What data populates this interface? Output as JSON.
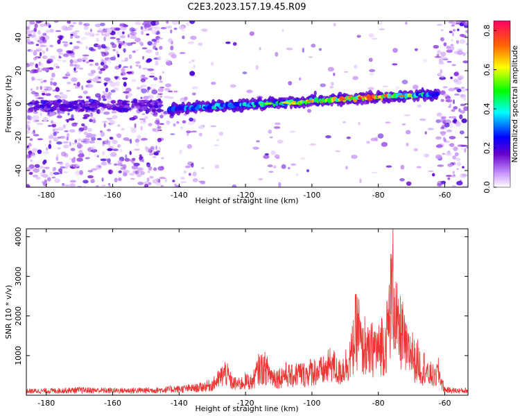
{
  "title": "C2E3.2023.157.19.45.R09",
  "chart_data": [
    {
      "type": "heatmap",
      "xlabel": "Height of straight line (km)",
      "ylabel": "Frequency (Hz)",
      "xlim": [
        -186,
        -53
      ],
      "ylim": [
        -50,
        50
      ],
      "x_ticks": [
        "-180",
        "-160",
        "-140",
        "-120",
        "-100",
        "-80",
        "-60"
      ],
      "y_ticks": [
        "-40",
        "-20",
        "0",
        "20",
        "40"
      ],
      "colorbar": {
        "label": "Normalized spectral amplitude",
        "range": [
          0,
          0.85
        ],
        "ticks": [
          "0.0",
          "0.2",
          "0.4",
          "0.6",
          "0.8"
        ],
        "colors": [
          "#ffffff",
          "#cc99ff",
          "#6600cc",
          "#0000ff",
          "#00ffff",
          "#00ff00",
          "#ffff00",
          "#ff6600",
          "#ff0066"
        ]
      },
      "band": {
        "x_start": -143,
        "x_end": -62,
        "freq_at_start": -3,
        "freq_at_end": 6,
        "intensity": [
          {
            "x": -140,
            "v": 0.35
          },
          {
            "x": -130,
            "v": 0.45
          },
          {
            "x": -120,
            "v": 0.4
          },
          {
            "x": -110,
            "v": 0.55
          },
          {
            "x": -100,
            "v": 0.65
          },
          {
            "x": -90,
            "v": 0.7
          },
          {
            "x": -80,
            "v": 0.8
          },
          {
            "x": -70,
            "v": 0.6
          },
          {
            "x": -62,
            "v": 0.3
          }
        ]
      }
    },
    {
      "type": "line",
      "xlabel": "Height of straight line (km)",
      "ylabel": "SNR (10 * v/v)",
      "xlim": [
        -186,
        -53
      ],
      "ylim": [
        0,
        4200
      ],
      "x_ticks": [
        "-180",
        "-160",
        "-140",
        "-120",
        "-100",
        "-80",
        "-60"
      ],
      "y_ticks": [
        "1000",
        "2000",
        "3000",
        "4000"
      ],
      "color": "#ee3333",
      "series": [
        {
          "x": [
            -186,
            -180,
            -170,
            -160,
            -150,
            -145,
            -140,
            -135,
            -130,
            -128,
            -126,
            -124,
            -122,
            -120,
            -118,
            -116,
            -114,
            -112,
            -110,
            -108,
            -106,
            -104,
            -102,
            -100,
            -98,
            -96,
            -94,
            -92,
            -90,
            -88,
            -87,
            -86,
            -85,
            -84,
            -83,
            -82,
            -81,
            -80,
            -79,
            -78,
            -77,
            -76,
            -75.5,
            -75,
            -74,
            -73,
            -72,
            -71,
            -70,
            -69,
            -68,
            -67,
            -66,
            -65,
            -64,
            -63,
            -62,
            -61,
            -60,
            -58,
            -56,
            -53
          ],
          "y": [
            150,
            160,
            190,
            170,
            180,
            200,
            230,
            260,
            380,
            600,
            850,
            450,
            400,
            520,
            480,
            980,
            1000,
            700,
            650,
            780,
            700,
            820,
            760,
            900,
            880,
            920,
            1200,
            800,
            1100,
            1500,
            2300,
            2500,
            1600,
            1900,
            1500,
            1700,
            1800,
            1600,
            2000,
            1800,
            2600,
            3800,
            4100,
            3200,
            2200,
            2400,
            1800,
            1500,
            1700,
            1200,
            1300,
            900,
            1100,
            700,
            800,
            600,
            900,
            500,
            200,
            180,
            170,
            170
          ]
        }
      ]
    }
  ]
}
